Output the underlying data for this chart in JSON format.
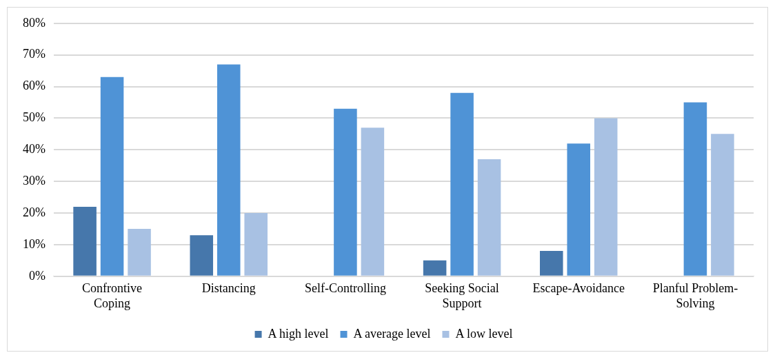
{
  "chart_data": {
    "type": "bar",
    "categories": [
      "Confrontive Coping",
      "Distancing",
      "Self-Controlling",
      "Seeking Social Support",
      "Escape-Avoidance",
      "Planful Problem-Solving"
    ],
    "series": [
      {
        "name": "A high level",
        "color": "#4677ab",
        "values": [
          22,
          13,
          null,
          5,
          8,
          null
        ]
      },
      {
        "name": "A average level",
        "color": "#4f93d6",
        "values": [
          63,
          67,
          53,
          58,
          42,
          55
        ]
      },
      {
        "name": "A low level",
        "color": "#a8c1e3",
        "values": [
          15,
          20,
          47,
          37,
          50,
          45
        ]
      }
    ],
    "ylim": [
      0,
      80
    ],
    "yticks": [
      {
        "value": 0,
        "label": "0%"
      },
      {
        "value": 10,
        "label": "10%"
      },
      {
        "value": 20,
        "label": "20%"
      },
      {
        "value": 30,
        "label": "30%"
      },
      {
        "value": 40,
        "label": "40%"
      },
      {
        "value": 50,
        "label": "50%"
      },
      {
        "value": 60,
        "label": "60%"
      },
      {
        "value": 70,
        "label": "70%"
      },
      {
        "value": 80,
        "label": "80%"
      }
    ],
    "grid": "y",
    "legend": "bottom"
  }
}
